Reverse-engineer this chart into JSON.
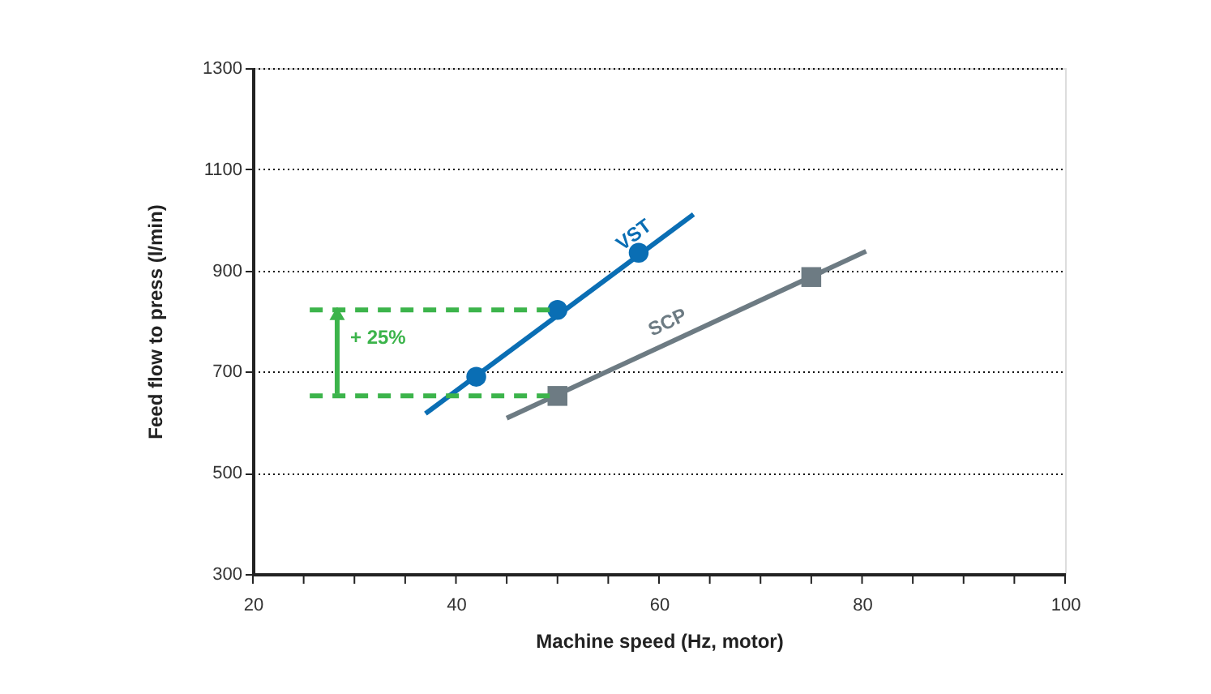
{
  "chart_data": {
    "type": "line",
    "xlabel": "Machine speed (Hz, motor)",
    "ylabel": "Feed flow to press (l/min)",
    "xlim": [
      20,
      100
    ],
    "xticks": [
      20,
      {
        "value": 25,
        "label": null
      },
      {
        "value": 30,
        "label": null
      },
      {
        "value": 35,
        "label": null
      },
      40,
      {
        "value": 45,
        "label": null
      },
      {
        "value": 50,
        "label": null
      },
      {
        "value": 55,
        "label": null
      },
      60,
      {
        "value": 65,
        "label": null
      },
      {
        "value": 70,
        "label": null
      },
      {
        "value": 75,
        "label": null
      },
      80,
      {
        "value": 85,
        "label": null
      },
      {
        "value": 90,
        "label": null
      },
      {
        "value": 95,
        "label": null
      },
      100
    ],
    "ylim": [
      300,
      1300
    ],
    "yticks": [
      300,
      500,
      700,
      900,
      1100,
      1300
    ],
    "grid": "y",
    "series": [
      {
        "name": "VST",
        "color": "#0a6eb4",
        "x": [
          37,
          63.4
        ],
        "values": [
          617,
          1011
        ],
        "marker": "none",
        "line_style": "solid"
      },
      {
        "type": "scatter",
        "color": "#0a6eb4",
        "x": [
          42,
          50,
          58
        ],
        "values": [
          690,
          822,
          935
        ],
        "marker": "circle"
      },
      {
        "name": "SCP",
        "color": "#6d7b83",
        "x": [
          45,
          80.4
        ],
        "values": [
          608,
          938
        ],
        "marker": "none",
        "line_style": "solid"
      },
      {
        "type": "scatter",
        "color": "#6d7b83",
        "x": [
          50,
          75
        ],
        "values": [
          652,
          887
        ],
        "marker": "square"
      },
      {
        "color": "#3cb44b",
        "x": [
          25.6,
          50
        ],
        "values": [
          822,
          822
        ],
        "line_style": "dashed",
        "marker": "none"
      },
      {
        "color": "#3cb44b",
        "x": [
          25.6,
          50
        ],
        "values": [
          652,
          652
        ],
        "line_style": "dashed",
        "marker": "none"
      },
      {
        "color": "#3cb44b",
        "x": [
          28.3,
          28.3
        ],
        "values": [
          656,
          815
        ],
        "marker": "triangle",
        "line_style": "solid"
      }
    ],
    "annotations": [
      "+ 25%"
    ]
  }
}
